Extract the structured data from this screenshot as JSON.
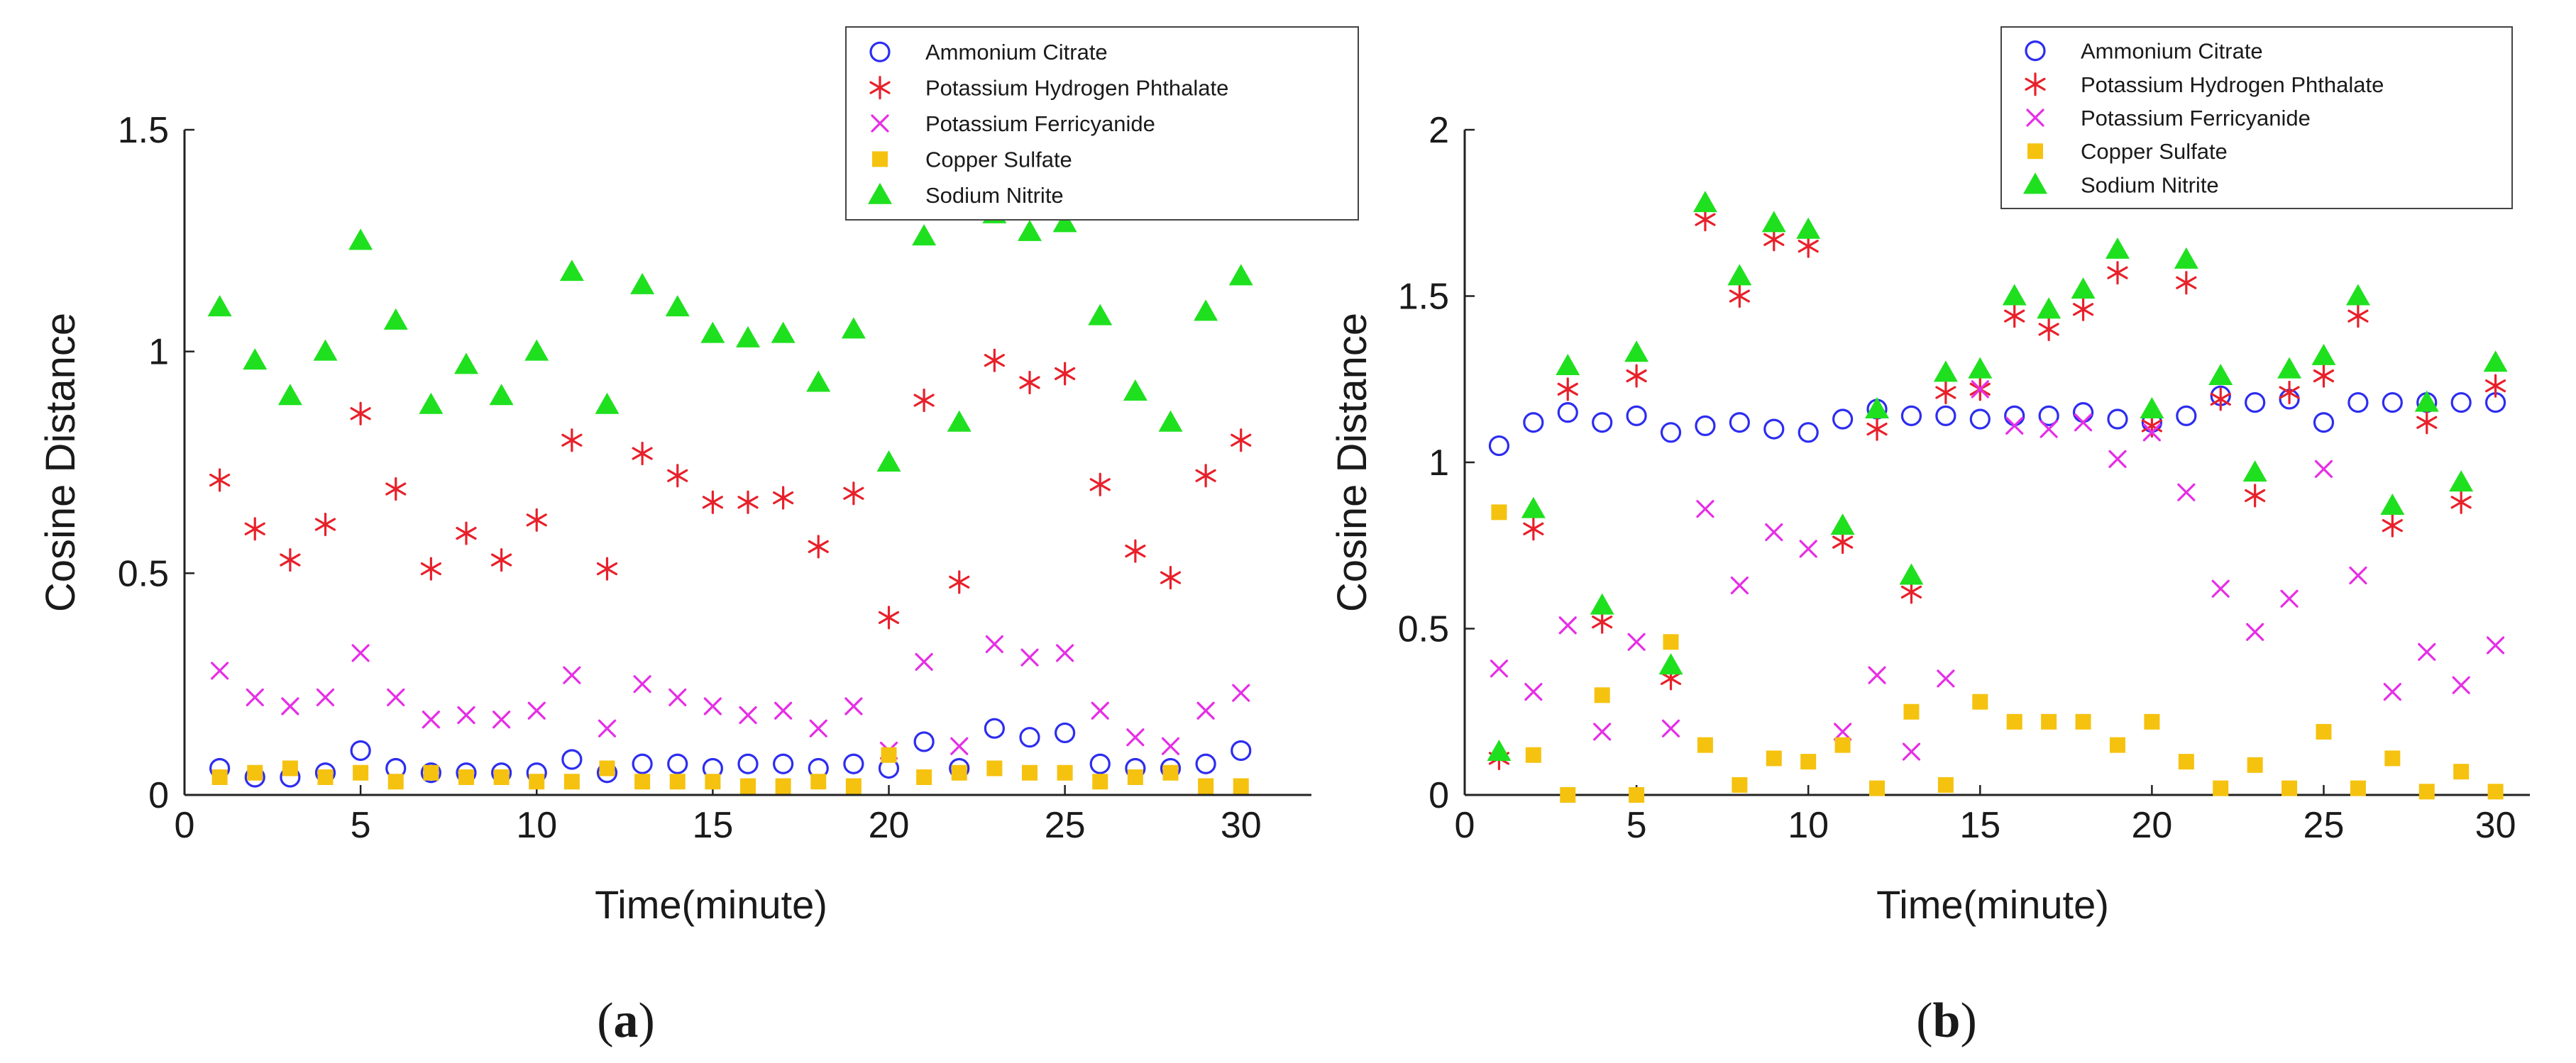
{
  "figure": {
    "panels": [
      {
        "label_open": "(",
        "label_letter": "a",
        "label_close": ")"
      },
      {
        "label_open": "(",
        "label_letter": "b",
        "label_close": ")"
      }
    ]
  },
  "chart_data": [
    {
      "type": "scatter",
      "panel": "a",
      "xlabel": "Time(minute)",
      "ylabel": "Cosine Distance",
      "xlim": [
        0,
        32
      ],
      "ylim": [
        0,
        1.5
      ],
      "xticks": [
        0,
        5,
        10,
        15,
        20,
        25,
        30
      ],
      "xtick_labels": [
        "0",
        "5",
        "10",
        "15",
        "20",
        "25",
        "30"
      ],
      "yticks": [
        0,
        0.5,
        1,
        1.5
      ],
      "ytick_labels": [
        "0",
        "0.5",
        "1",
        "1.5"
      ],
      "legend_position": "top-right",
      "x": [
        1,
        2,
        3,
        4,
        5,
        6,
        7,
        8,
        9,
        10,
        11,
        12,
        13,
        14,
        15,
        16,
        17,
        18,
        19,
        20,
        21,
        22,
        23,
        24,
        25,
        26,
        27,
        28,
        29,
        30
      ],
      "series": [
        {
          "name": "Ammonium Citrate",
          "marker": "circle",
          "color": "#2d2df0",
          "values": [
            0.06,
            0.04,
            0.04,
            0.05,
            0.1,
            0.06,
            0.05,
            0.05,
            0.05,
            0.05,
            0.08,
            0.05,
            0.07,
            0.07,
            0.06,
            0.07,
            0.07,
            0.06,
            0.07,
            0.06,
            0.12,
            0.06,
            0.15,
            0.13,
            0.14,
            0.07,
            0.06,
            0.06,
            0.07,
            0.1
          ]
        },
        {
          "name": "Potassium Hydrogen Phthalate",
          "marker": "asterisk",
          "color": "#e8202a",
          "values": [
            0.71,
            0.6,
            0.53,
            0.61,
            0.86,
            0.69,
            0.51,
            0.59,
            0.53,
            0.62,
            0.8,
            0.51,
            0.77,
            0.72,
            0.66,
            0.66,
            0.67,
            0.56,
            0.68,
            0.4,
            0.89,
            0.48,
            0.98,
            0.93,
            0.95,
            0.7,
            0.55,
            0.49,
            0.72,
            0.8
          ]
        },
        {
          "name": "Potassium Ferricyanide",
          "marker": "x",
          "color": "#e62ee6",
          "values": [
            0.28,
            0.22,
            0.2,
            0.22,
            0.32,
            0.22,
            0.17,
            0.18,
            0.17,
            0.19,
            0.27,
            0.15,
            0.25,
            0.22,
            0.2,
            0.18,
            0.19,
            0.15,
            0.2,
            0.1,
            0.3,
            0.11,
            0.34,
            0.31,
            0.32,
            0.19,
            0.13,
            0.11,
            0.19,
            0.23
          ]
        },
        {
          "name": "Copper Sulfate",
          "marker": "square",
          "color": "#f5c20f",
          "values": [
            0.04,
            0.05,
            0.06,
            0.04,
            0.05,
            0.03,
            0.05,
            0.04,
            0.04,
            0.03,
            0.03,
            0.06,
            0.03,
            0.03,
            0.03,
            0.02,
            0.02,
            0.03,
            0.02,
            0.09,
            0.04,
            0.05,
            0.06,
            0.05,
            0.05,
            0.03,
            0.04,
            0.05,
            0.02,
            0.02
          ]
        },
        {
          "name": "Sodium Nitrite",
          "marker": "triangle",
          "color": "#1fe01f",
          "values": [
            1.1,
            0.98,
            0.9,
            1.0,
            1.25,
            1.07,
            0.88,
            0.97,
            0.9,
            1.0,
            1.18,
            0.88,
            1.15,
            1.1,
            1.04,
            1.03,
            1.04,
            0.93,
            1.05,
            0.75,
            1.26,
            0.84,
            1.31,
            1.27,
            1.29,
            1.08,
            0.91,
            0.84,
            1.09,
            1.17
          ]
        }
      ]
    },
    {
      "type": "scatter",
      "panel": "b",
      "xlabel": "Time(minute)",
      "ylabel": "Cosine Distance",
      "xlim": [
        0,
        31
      ],
      "ylim": [
        0,
        2
      ],
      "xticks": [
        0,
        5,
        10,
        15,
        20,
        25,
        30
      ],
      "xtick_labels": [
        "0",
        "5",
        "10",
        "15",
        "20",
        "25",
        "30"
      ],
      "yticks": [
        0,
        0.5,
        1,
        1.5,
        2
      ],
      "ytick_labels": [
        "0",
        "0.5",
        "1",
        "1.5",
        "2"
      ],
      "legend_position": "top-right",
      "x": [
        1,
        2,
        3,
        4,
        5,
        6,
        7,
        8,
        9,
        10,
        11,
        12,
        13,
        14,
        15,
        16,
        17,
        18,
        19,
        20,
        21,
        22,
        23,
        24,
        25,
        26,
        27,
        28,
        29,
        30
      ],
      "series": [
        {
          "name": "Ammonium Citrate",
          "marker": "circle",
          "color": "#2d2df0",
          "values": [
            1.05,
            1.12,
            1.15,
            1.12,
            1.14,
            1.09,
            1.11,
            1.12,
            1.1,
            1.09,
            1.13,
            1.16,
            1.14,
            1.14,
            1.13,
            1.14,
            1.14,
            1.15,
            1.13,
            1.12,
            1.14,
            1.2,
            1.18,
            1.19,
            1.12,
            1.18,
            1.18,
            1.18,
            1.18,
            1.18
          ]
        },
        {
          "name": "Potassium Hydrogen Phthalate",
          "marker": "asterisk",
          "color": "#e8202a",
          "values": [
            0.11,
            0.8,
            1.22,
            0.52,
            1.26,
            0.35,
            1.73,
            1.5,
            1.67,
            1.65,
            0.76,
            1.1,
            0.61,
            1.21,
            1.22,
            1.44,
            1.4,
            1.46,
            1.57,
            1.11,
            1.54,
            1.19,
            0.9,
            1.21,
            1.26,
            1.44,
            0.81,
            1.12,
            0.88,
            1.23
          ]
        },
        {
          "name": "Potassium Ferricyanide",
          "marker": "x",
          "color": "#e62ee6",
          "values": [
            0.38,
            0.31,
            0.51,
            0.19,
            0.46,
            0.2,
            0.86,
            0.63,
            0.79,
            0.74,
            0.19,
            0.36,
            0.13,
            0.35,
            1.22,
            1.11,
            1.1,
            1.12,
            1.01,
            1.09,
            0.91,
            0.62,
            0.49,
            0.59,
            0.98,
            0.66,
            0.31,
            0.43,
            0.33,
            0.45
          ]
        },
        {
          "name": "Copper Sulfate",
          "marker": "square",
          "color": "#f5c20f",
          "values": [
            0.85,
            0.12,
            0.0,
            0.3,
            0.0,
            0.46,
            0.15,
            0.03,
            0.11,
            0.1,
            0.15,
            0.02,
            0.25,
            0.03,
            0.28,
            0.22,
            0.22,
            0.22,
            0.15,
            0.22,
            0.1,
            0.02,
            0.09,
            0.02,
            0.19,
            0.02,
            0.11,
            0.01,
            0.07,
            0.01
          ]
        },
        {
          "name": "Sodium Nitrite",
          "marker": "triangle",
          "color": "#1fe01f",
          "values": [
            0.13,
            0.86,
            1.29,
            0.57,
            1.33,
            0.39,
            1.78,
            1.56,
            1.72,
            1.7,
            0.81,
            1.16,
            0.66,
            1.27,
            1.28,
            1.5,
            1.46,
            1.52,
            1.64,
            1.16,
            1.61,
            1.26,
            0.97,
            1.28,
            1.32,
            1.5,
            0.87,
            1.18,
            0.94,
            1.3
          ]
        }
      ]
    }
  ]
}
